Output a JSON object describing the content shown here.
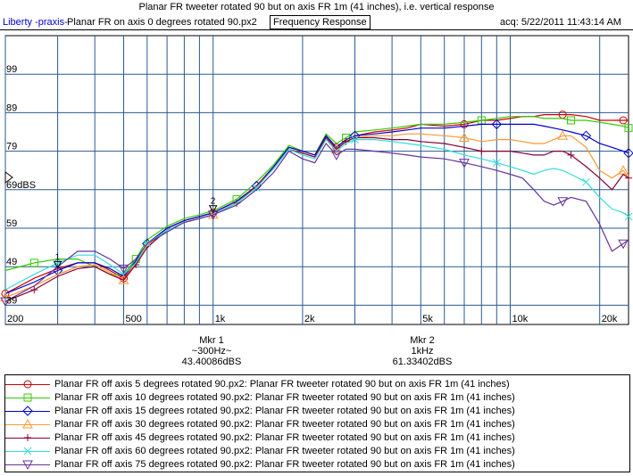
{
  "header": {
    "title": "Planar FR tweeter rotated 90 but on axis FR 1m (41 inches), i.e. vertical response",
    "app_name": "Liberty -praxis-",
    "file_name": "Planar FR on axis 0 degrees rotated 90.px2",
    "mode": "Frequency Response",
    "acq": "acq: 5/22/2011 11:43:14 AM"
  },
  "markers": [
    {
      "label": "Mkr 1",
      "freq": "~300Hz~",
      "value": "43.40086dBS",
      "num": "1"
    },
    {
      "label": "Mkr 2",
      "freq": "1kHz",
      "value": "61.33402dBS",
      "num": "2"
    }
  ],
  "chart_data": {
    "type": "line",
    "x_scale": "log",
    "xlim": [
      200,
      25000
    ],
    "ylim": [
      34,
      109
    ],
    "grid": true,
    "legend_position": "bottom",
    "y_ticks": [
      {
        "v": 99,
        "label": "99"
      },
      {
        "v": 89,
        "label": "89"
      },
      {
        "v": 79,
        "label": "79"
      },
      {
        "v": 69,
        "label": "69dBS"
      },
      {
        "v": 59,
        "label": "59"
      },
      {
        "v": 49,
        "label": "49"
      },
      {
        "v": 39,
        "label": "39"
      }
    ],
    "x_tick_labels": [
      {
        "f": 200,
        "label": "200"
      },
      {
        "f": 500,
        "label": "500"
      },
      {
        "f": 1000,
        "label": "1k"
      },
      {
        "f": 2000,
        "label": "2k"
      },
      {
        "f": 5000,
        "label": "5k"
      },
      {
        "f": 10000,
        "label": "10k"
      },
      {
        "f": 20000,
        "label": "20k"
      }
    ],
    "x_gridlines": [
      200,
      300,
      400,
      500,
      600,
      700,
      800,
      900,
      1000,
      2000,
      3000,
      4000,
      5000,
      6000,
      7000,
      8000,
      9000,
      10000,
      20000
    ],
    "x": [
      200,
      250,
      300,
      350,
      400,
      450,
      500,
      550,
      600,
      700,
      800,
      900,
      1000,
      1200,
      1400,
      1600,
      1800,
      2000,
      2200,
      2400,
      2600,
      2800,
      3000,
      3500,
      4000,
      4500,
      5000,
      6000,
      7000,
      8000,
      9000,
      10000,
      11000,
      12000,
      13000,
      14000,
      15000,
      16000,
      18000,
      20000,
      22000,
      24000,
      25000
    ],
    "series": [
      {
        "name": "Planar FR off axis 5 degrees rotated 90.px2:  Planar FR tweeter rotated 90 but on axis FR 1m (41 inches)",
        "color": "#cc0000",
        "marker": "circle",
        "values": [
          42,
          46,
          48.5,
          50,
          50,
          48,
          46,
          50,
          55,
          59,
          61,
          62,
          63,
          66,
          70,
          75,
          80,
          79,
          78,
          83,
          80,
          82,
          83,
          84,
          84.5,
          85,
          86,
          85.5,
          86,
          87,
          87,
          87.5,
          88,
          88,
          88.5,
          88.5,
          88.5,
          88.5,
          88,
          87,
          87,
          87,
          87
        ]
      },
      {
        "name": "Planar FR off axis 10 degrees rotated 90.px2:  Planar FR tweeter rotated 90 but on axis FR 1m (41 inches)",
        "color": "#33cc00",
        "marker": "square",
        "values": [
          48,
          50,
          51,
          51,
          49,
          47,
          47,
          51,
          56,
          59.5,
          61.5,
          62.5,
          63.5,
          66.5,
          71,
          75.5,
          80.5,
          79,
          78,
          83.5,
          81,
          82.5,
          84,
          84.5,
          85,
          85.5,
          86,
          86,
          86.5,
          87,
          87.5,
          88,
          88,
          88,
          87.5,
          87.5,
          87.5,
          87,
          87,
          86.5,
          86,
          85.5,
          85
        ]
      },
      {
        "name": "Planar FR off axis 15 degrees rotated 90.px2:  Planar FR tweeter rotated 90 but on axis FR 1m (41 inches)",
        "color": "#0000cc",
        "marker": "diamond",
        "values": [
          42,
          45,
          48,
          50,
          50,
          48.5,
          46.5,
          50.5,
          55,
          59,
          61,
          62,
          63,
          66,
          70,
          75,
          80,
          79,
          78,
          83,
          80,
          82,
          83,
          83.5,
          84,
          84.5,
          85,
          85,
          85.5,
          86,
          86,
          86,
          86,
          86,
          85.5,
          85,
          84.5,
          84,
          83,
          81,
          80,
          79,
          78.5
        ]
      },
      {
        "name": "Planar FR off axis 30 degrees rotated 90.px2:  Planar FR tweeter rotated 90 but on axis FR 1m (41 inches)",
        "color": "#ff9933",
        "marker": "triangle",
        "values": [
          41,
          44,
          47,
          49,
          49.5,
          47.5,
          45.5,
          50,
          54.5,
          58.5,
          60.5,
          61.5,
          62.5,
          65.5,
          70,
          74.5,
          79.5,
          78.5,
          77.5,
          82.5,
          79.5,
          81.5,
          82.5,
          83,
          83,
          83.5,
          83.5,
          83,
          82.5,
          81.5,
          82,
          82,
          81.5,
          81,
          81,
          82,
          83,
          83,
          80,
          74,
          72,
          74,
          72
        ]
      },
      {
        "name": "Planar FR off axis 45 degrees rotated 90.px2:  Planar FR tweeter rotated 90 but on axis FR 1m (41 inches)",
        "color": "#880033",
        "marker": "plus",
        "values": [
          40,
          43,
          46.5,
          48.5,
          49,
          47,
          45.5,
          49.5,
          54,
          58.5,
          60.5,
          61.5,
          62.5,
          65.5,
          70,
          74.5,
          79.5,
          78.5,
          77.5,
          82.5,
          79.5,
          81.5,
          82.5,
          82.5,
          82,
          82,
          81.5,
          81,
          80,
          79,
          79,
          79,
          78.5,
          78,
          78,
          79,
          79,
          78,
          75,
          72,
          69,
          73,
          72
        ]
      },
      {
        "name": "Planar FR off axis 60 degrees rotated 90.px2:  Planar FR tweeter rotated 90 but on axis FR 1m (41 inches)",
        "color": "#33dddd",
        "marker": "x",
        "values": [
          43,
          47,
          50,
          52,
          52,
          49.5,
          47,
          50,
          55,
          58.5,
          60.5,
          61.5,
          62.5,
          65.5,
          69.5,
          74.5,
          79.5,
          78,
          77,
          82,
          79,
          81,
          82,
          82,
          81.5,
          81,
          80.5,
          79.5,
          78,
          77,
          76,
          75,
          74,
          73,
          74,
          74.5,
          74,
          73,
          71,
          67,
          64,
          63,
          62
        ]
      },
      {
        "name": "Planar FR off axis 75 degrees rotated 90.px2:  Planar FR tweeter rotated 90 but on axis FR 1m (41 inches)",
        "color": "#663399",
        "marker": "triangle-down",
        "values": [
          40,
          44,
          49,
          53,
          53,
          51,
          48.5,
          51,
          55,
          58,
          60.5,
          61.5,
          62.5,
          65,
          69,
          73.5,
          79,
          77,
          76,
          81,
          78,
          79.5,
          79.5,
          79,
          78.5,
          78,
          77.5,
          77,
          76,
          75,
          74,
          73,
          72,
          69,
          66,
          65,
          66,
          67,
          66,
          60,
          53,
          55,
          56
        ]
      }
    ]
  }
}
